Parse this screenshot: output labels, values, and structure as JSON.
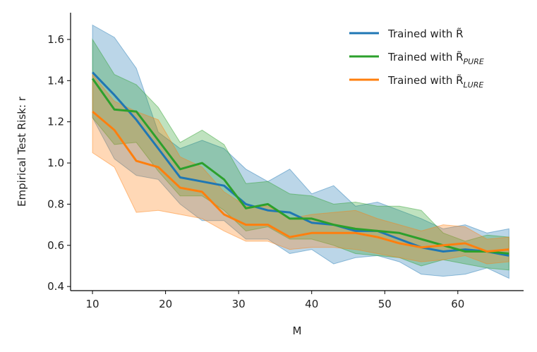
{
  "chart_data": {
    "type": "line",
    "title": "",
    "xlabel": "M",
    "ylabel": "Empirical Test Risk: r",
    "xlim": [
      7,
      69
    ],
    "ylim": [
      0.38,
      1.73
    ],
    "xticks": [
      10,
      20,
      30,
      40,
      50,
      60
    ],
    "yticks": [
      0.4,
      0.6,
      0.8,
      1.0,
      1.2,
      1.4,
      1.6
    ],
    "xtick_labels": [
      "10",
      "20",
      "30",
      "40",
      "50",
      "60"
    ],
    "ytick_labels": [
      "0.4",
      "0.6",
      "0.8",
      "1.0",
      "1.2",
      "1.4",
      "1.6"
    ],
    "grid": false,
    "legend_position": "top-right",
    "x": [
      10,
      13,
      16,
      19,
      22,
      25,
      28,
      31,
      34,
      37,
      40,
      43,
      46,
      49,
      52,
      55,
      58,
      61,
      64,
      67
    ],
    "series": [
      {
        "name": "Trained with R̃",
        "legend_main": "Trained with R̃",
        "legend_sub": "",
        "color": "#1f77b4",
        "values": [
          1.44,
          1.33,
          1.21,
          1.07,
          0.93,
          0.91,
          0.89,
          0.8,
          0.77,
          0.76,
          0.71,
          0.7,
          0.67,
          0.67,
          0.63,
          0.59,
          0.57,
          0.58,
          0.57,
          0.55
        ],
        "lower": [
          1.22,
          1.02,
          0.94,
          0.92,
          0.8,
          0.72,
          0.72,
          0.63,
          0.63,
          0.56,
          0.58,
          0.51,
          0.54,
          0.55,
          0.52,
          0.46,
          0.45,
          0.46,
          0.49,
          0.44
        ],
        "upper": [
          1.67,
          1.61,
          1.46,
          1.15,
          1.07,
          1.11,
          1.07,
          0.97,
          0.91,
          0.97,
          0.85,
          0.89,
          0.79,
          0.81,
          0.77,
          0.73,
          0.68,
          0.7,
          0.66,
          0.68
        ]
      },
      {
        "name": "Trained with R̃_PURE",
        "legend_main": "Trained with R̃",
        "legend_sub": "PURE",
        "color": "#2ca02c",
        "values": [
          1.41,
          1.26,
          1.25,
          1.11,
          0.97,
          1.0,
          0.92,
          0.78,
          0.8,
          0.73,
          0.73,
          0.7,
          0.68,
          0.67,
          0.66,
          0.63,
          0.6,
          0.57,
          0.57,
          0.56
        ],
        "lower": [
          1.22,
          1.09,
          1.1,
          0.96,
          0.84,
          0.84,
          0.77,
          0.67,
          0.69,
          0.63,
          0.63,
          0.6,
          0.56,
          0.55,
          0.54,
          0.5,
          0.53,
          0.51,
          0.49,
          0.48
        ],
        "upper": [
          1.6,
          1.43,
          1.38,
          1.27,
          1.1,
          1.16,
          1.09,
          0.9,
          0.91,
          0.85,
          0.84,
          0.8,
          0.81,
          0.79,
          0.79,
          0.77,
          0.66,
          0.62,
          0.65,
          0.64
        ]
      },
      {
        "name": "Trained with R̃_LURE",
        "legend_main": "Trained with R̃",
        "legend_sub": "LURE",
        "color": "#ff7f0e",
        "values": [
          1.25,
          1.16,
          1.01,
          0.98,
          0.88,
          0.86,
          0.75,
          0.7,
          0.7,
          0.64,
          0.66,
          0.66,
          0.66,
          0.64,
          0.61,
          0.59,
          0.6,
          0.61,
          0.57,
          0.58
        ],
        "lower": [
          1.05,
          0.98,
          0.76,
          0.77,
          0.75,
          0.73,
          0.67,
          0.62,
          0.62,
          0.58,
          0.59,
          0.59,
          0.58,
          0.56,
          0.54,
          0.52,
          0.53,
          0.55,
          0.51,
          0.52
        ],
        "upper": [
          1.43,
          1.3,
          1.25,
          1.21,
          1.03,
          0.98,
          0.86,
          0.79,
          0.79,
          0.73,
          0.75,
          0.76,
          0.77,
          0.73,
          0.7,
          0.67,
          0.7,
          0.69,
          0.63,
          0.64
        ]
      }
    ]
  }
}
